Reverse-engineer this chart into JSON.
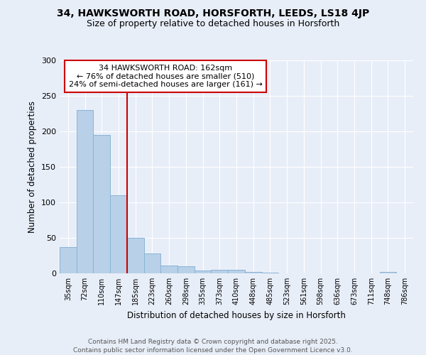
{
  "title_line1": "34, HAWKSWORTH ROAD, HORSFORTH, LEEDS, LS18 4JP",
  "title_line2": "Size of property relative to detached houses in Horsforth",
  "xlabel": "Distribution of detached houses by size in Horsforth",
  "ylabel": "Number of detached properties",
  "categories": [
    "35sqm",
    "72sqm",
    "110sqm",
    "147sqm",
    "185sqm",
    "223sqm",
    "260sqm",
    "298sqm",
    "335sqm",
    "373sqm",
    "410sqm",
    "448sqm",
    "485sqm",
    "523sqm",
    "561sqm",
    "598sqm",
    "636sqm",
    "673sqm",
    "711sqm",
    "748sqm",
    "786sqm"
  ],
  "values": [
    37,
    230,
    195,
    110,
    50,
    28,
    11,
    10,
    4,
    5,
    5,
    2,
    1,
    0,
    0,
    0,
    0,
    0,
    0,
    2,
    0
  ],
  "bar_color": "#b8d0e8",
  "bar_edge_color": "#8ab4d4",
  "vline_x": 3.0,
  "vline_color": "#cc0000",
  "annotation_line1": "34 HAWKSWORTH ROAD: 162sqm",
  "annotation_line2": "← 76% of detached houses are smaller (510)",
  "annotation_line3": "24% of semi-detached houses are larger (161) →",
  "annotation_box_color": "#ffffff",
  "annotation_box_edge": "#cc0000",
  "ylim": [
    0,
    300
  ],
  "yticks": [
    0,
    50,
    100,
    150,
    200,
    250,
    300
  ],
  "footnote": "Contains HM Land Registry data © Crown copyright and database right 2025.\nContains public sector information licensed under the Open Government Licence v3.0.",
  "background_color": "#e8eef8",
  "plot_bg_color": "#e8eef8",
  "grid_color": "#ffffff"
}
